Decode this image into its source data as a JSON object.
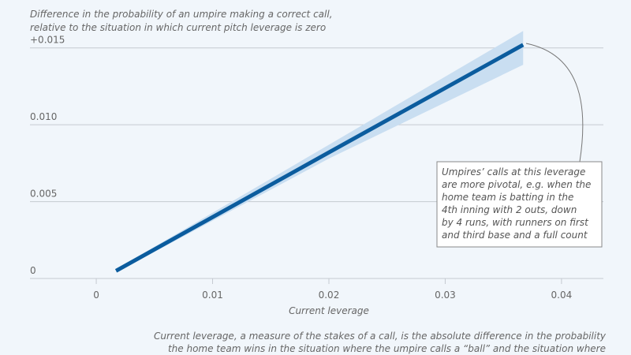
{
  "chart_data": {
    "type": "line",
    "y_label_lines": [
      "Difference in the probability of an umpire making a correct call,",
      "relative to the situation in which current pitch leverage is zero"
    ],
    "x_label": "Current leverage",
    "x": [
      0.0017,
      0.02,
      0.0367
    ],
    "series": [
      {
        "color": "#0b5c9e",
        "values": [
          0.0005,
          0.0082,
          0.0152
        ]
      }
    ],
    "band": {
      "color": "#c9def1",
      "lower": [
        0.0004,
        0.0078,
        0.0139
      ],
      "upper": [
        0.0006,
        0.0087,
        0.0161
      ]
    },
    "xlim": [
      -0.0057,
      0.0436
    ],
    "ylim": [
      0,
      0.0155
    ],
    "xticks": [
      0,
      0.01,
      0.02,
      0.03,
      0.04
    ],
    "yticks": [
      0,
      {
        "value": 0.005,
        "label": "0.005"
      },
      {
        "value": 0.01,
        "label": "0.010"
      },
      {
        "value": 0.015,
        "label": "+0.015"
      }
    ],
    "grid": true,
    "annotation": {
      "lines": [
        "Umpires’ calls at this leverage",
        "are more pivotal, e.g. when the",
        "home team is batting in the",
        "4th inning with 2 outs, down",
        "by 4 runs, with runners on first",
        "and third base and a full count"
      ]
    },
    "note_lines": [
      "Current leverage, a measure of the stakes of a call, is the absolute difference in the probability",
      "the home team wins in the situation where the umpire calls a “ball” and the situation where"
    ]
  }
}
